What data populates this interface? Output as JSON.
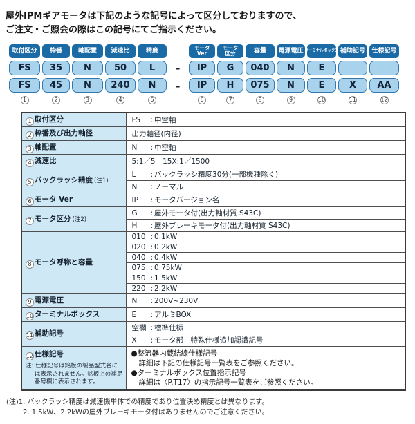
{
  "colors": {
    "badge_bg": "#1a6aa6",
    "cell_bg": "#a9d3ec",
    "cell_border": "#3179b0",
    "table_header_bg": "#cfe8f6",
    "table_border": "#3b3b3b"
  },
  "intro": {
    "line1": "屋外IPMギアモータは下記のような記号によって区分しておりますので、",
    "line2": "ご注文・ご照会の際はこの記号にてご指示ください。"
  },
  "code_diagram": {
    "separator": "-",
    "columns": [
      {
        "num": "1",
        "badge": [
          "取付区分"
        ],
        "row1": "FS",
        "row2": "FS"
      },
      {
        "num": "2",
        "badge": [
          "枠番"
        ],
        "row1": "35",
        "row2": "45"
      },
      {
        "num": "3",
        "badge": [
          "軸配置"
        ],
        "row1": "N",
        "row2": "N"
      },
      {
        "num": "4",
        "badge": [
          "減速比"
        ],
        "row1": "50",
        "row2": "240"
      },
      {
        "num": "5",
        "badge": [
          "精度"
        ],
        "row1": "L",
        "row2": "N"
      },
      {
        "num": "6",
        "badge": [
          "モータ",
          "Ver"
        ],
        "row1": "IP",
        "row2": "IP"
      },
      {
        "num": "7",
        "badge": [
          "モータ",
          "区分"
        ],
        "row1": "G",
        "row2": "H"
      },
      {
        "num": "8",
        "badge": [
          "容量"
        ],
        "row1": "040",
        "row2": "075"
      },
      {
        "num": "9",
        "badge": [
          "電源電圧"
        ],
        "row1": "N",
        "row2": "N"
      },
      {
        "num": "10",
        "badge": [
          "ターミナルボックス"
        ],
        "row1": "E",
        "row2": "E"
      },
      {
        "num": "11",
        "badge": [
          "補助記号"
        ],
        "row1": "",
        "row2": "X"
      },
      {
        "num": "12",
        "badge": [
          "仕様記号"
        ],
        "row1": "",
        "row2": "AA"
      }
    ]
  },
  "spec_table": {
    "rows": [
      {
        "num": "1",
        "label": "取付区分",
        "entries": [
          {
            "code": "FS",
            "desc": "中空軸"
          }
        ]
      },
      {
        "num": "2",
        "label": "枠番及び出力軸径",
        "plain": "出力軸径(内径)"
      },
      {
        "num": "3",
        "label": "軸配置",
        "entries": [
          {
            "code": "N",
            "desc": "中空軸"
          }
        ]
      },
      {
        "num": "4",
        "label": "減速比",
        "plain": "5:1／5　15X:1／1500"
      },
      {
        "num": "5",
        "label": "バックラッシ精度",
        "note": "(注1)",
        "entries": [
          {
            "code": "L",
            "desc": "バックラッシ精度30分(一部機種除く)"
          },
          {
            "code": "N",
            "desc": "ノーマル"
          }
        ]
      },
      {
        "num": "6",
        "label": "モータ Ver",
        "entries": [
          {
            "code": "IP",
            "desc": "モータバージョン名"
          }
        ]
      },
      {
        "num": "7",
        "label": "モータ区分",
        "note": "(注2)",
        "entries": [
          {
            "code": "G",
            "desc": "屋外モータ付(出力軸材質 S43C)"
          },
          {
            "code": "H",
            "desc": "屋外ブレーキモータ付(出力軸材質 S43C)"
          }
        ]
      },
      {
        "num": "8",
        "label": "モータ呼称と容量",
        "entries": [
          {
            "code": "010",
            "desc": "0.1kW"
          },
          {
            "code": "020",
            "desc": "0.2kW"
          },
          {
            "code": "040",
            "desc": "0.4kW"
          },
          {
            "code": "075",
            "desc": "0.75kW"
          },
          {
            "code": "150",
            "desc": "1.5kW"
          },
          {
            "code": "220",
            "desc": "2.2kW"
          }
        ]
      },
      {
        "num": "9",
        "label": "電源電圧",
        "entries": [
          {
            "code": "N",
            "desc": "200V~230V"
          }
        ]
      },
      {
        "num": "10",
        "label": "ターミナルボックス",
        "entries": [
          {
            "code": "E",
            "desc": "アルミBOX"
          }
        ]
      },
      {
        "num": "11",
        "label": "補助記号",
        "entries": [
          {
            "code": "空欄",
            "desc": "標準仕様"
          },
          {
            "code": "X",
            "desc": "モータ部　特殊仕様追加認識記号"
          }
        ]
      },
      {
        "num": "12",
        "label": "仕様記号",
        "side_note": "注: 仕様記号は銘板の製品型式名には表示されません。銘板上の補足番号欄に表示されます。",
        "bullets": [
          {
            "mark": "●",
            "text": "整流器内蔵結線仕様記号"
          },
          {
            "mark": "",
            "text": "詳細は下記の仕様記号一覧表をご参照ください。"
          },
          {
            "mark": "●",
            "text": "ターミナルボックス位置指示記号"
          },
          {
            "mark": "",
            "text": "詳細は〈P.T17〉の指示記号一覧表をご参照ください。"
          }
        ]
      }
    ]
  },
  "notes": [
    "(注)1. バックラッシ精度は減速機単体での精度であり位置決め精度とは異なります。",
    "2. 1.5kW、2.2kWの屋外ブレーキモータ付はありませんのでご注意ください。"
  ]
}
